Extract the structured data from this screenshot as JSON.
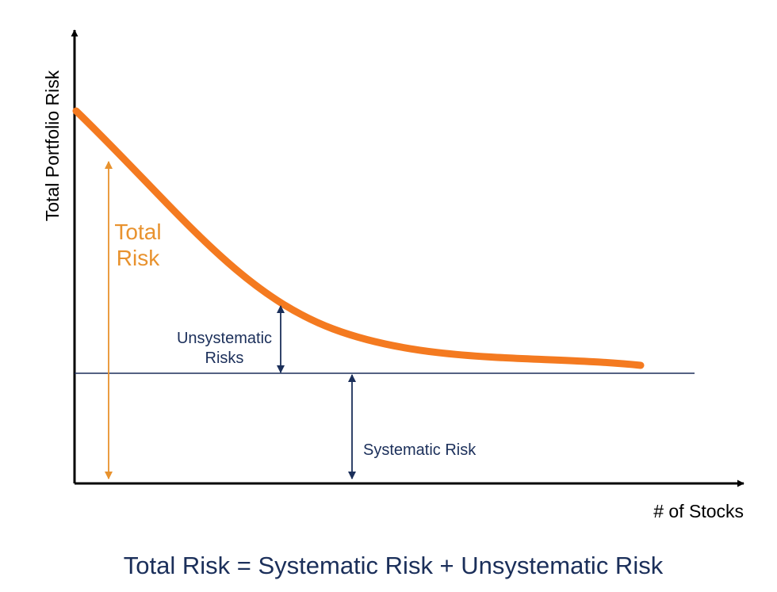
{
  "diagram": {
    "y_axis_label": "Total Portfolio Risk",
    "x_axis_label": "# of Stocks",
    "total_risk_line1": "Total",
    "total_risk_line2": "Risk",
    "unsystematic_line1": "Unsystematic",
    "unsystematic_line2": "Risks",
    "systematic_label": "Systematic Risk",
    "formula": "Total Risk = Systematic Risk + Unsystematic Risk"
  },
  "colors": {
    "axis": "#000000",
    "curve": "#f47a20",
    "total_risk": "#e8922e",
    "navy": "#1b2f5a",
    "formula": "#1b2f5a"
  },
  "icons": [
    "arrow-up-icon",
    "arrow-right-icon",
    "double-arrow-icon"
  ]
}
